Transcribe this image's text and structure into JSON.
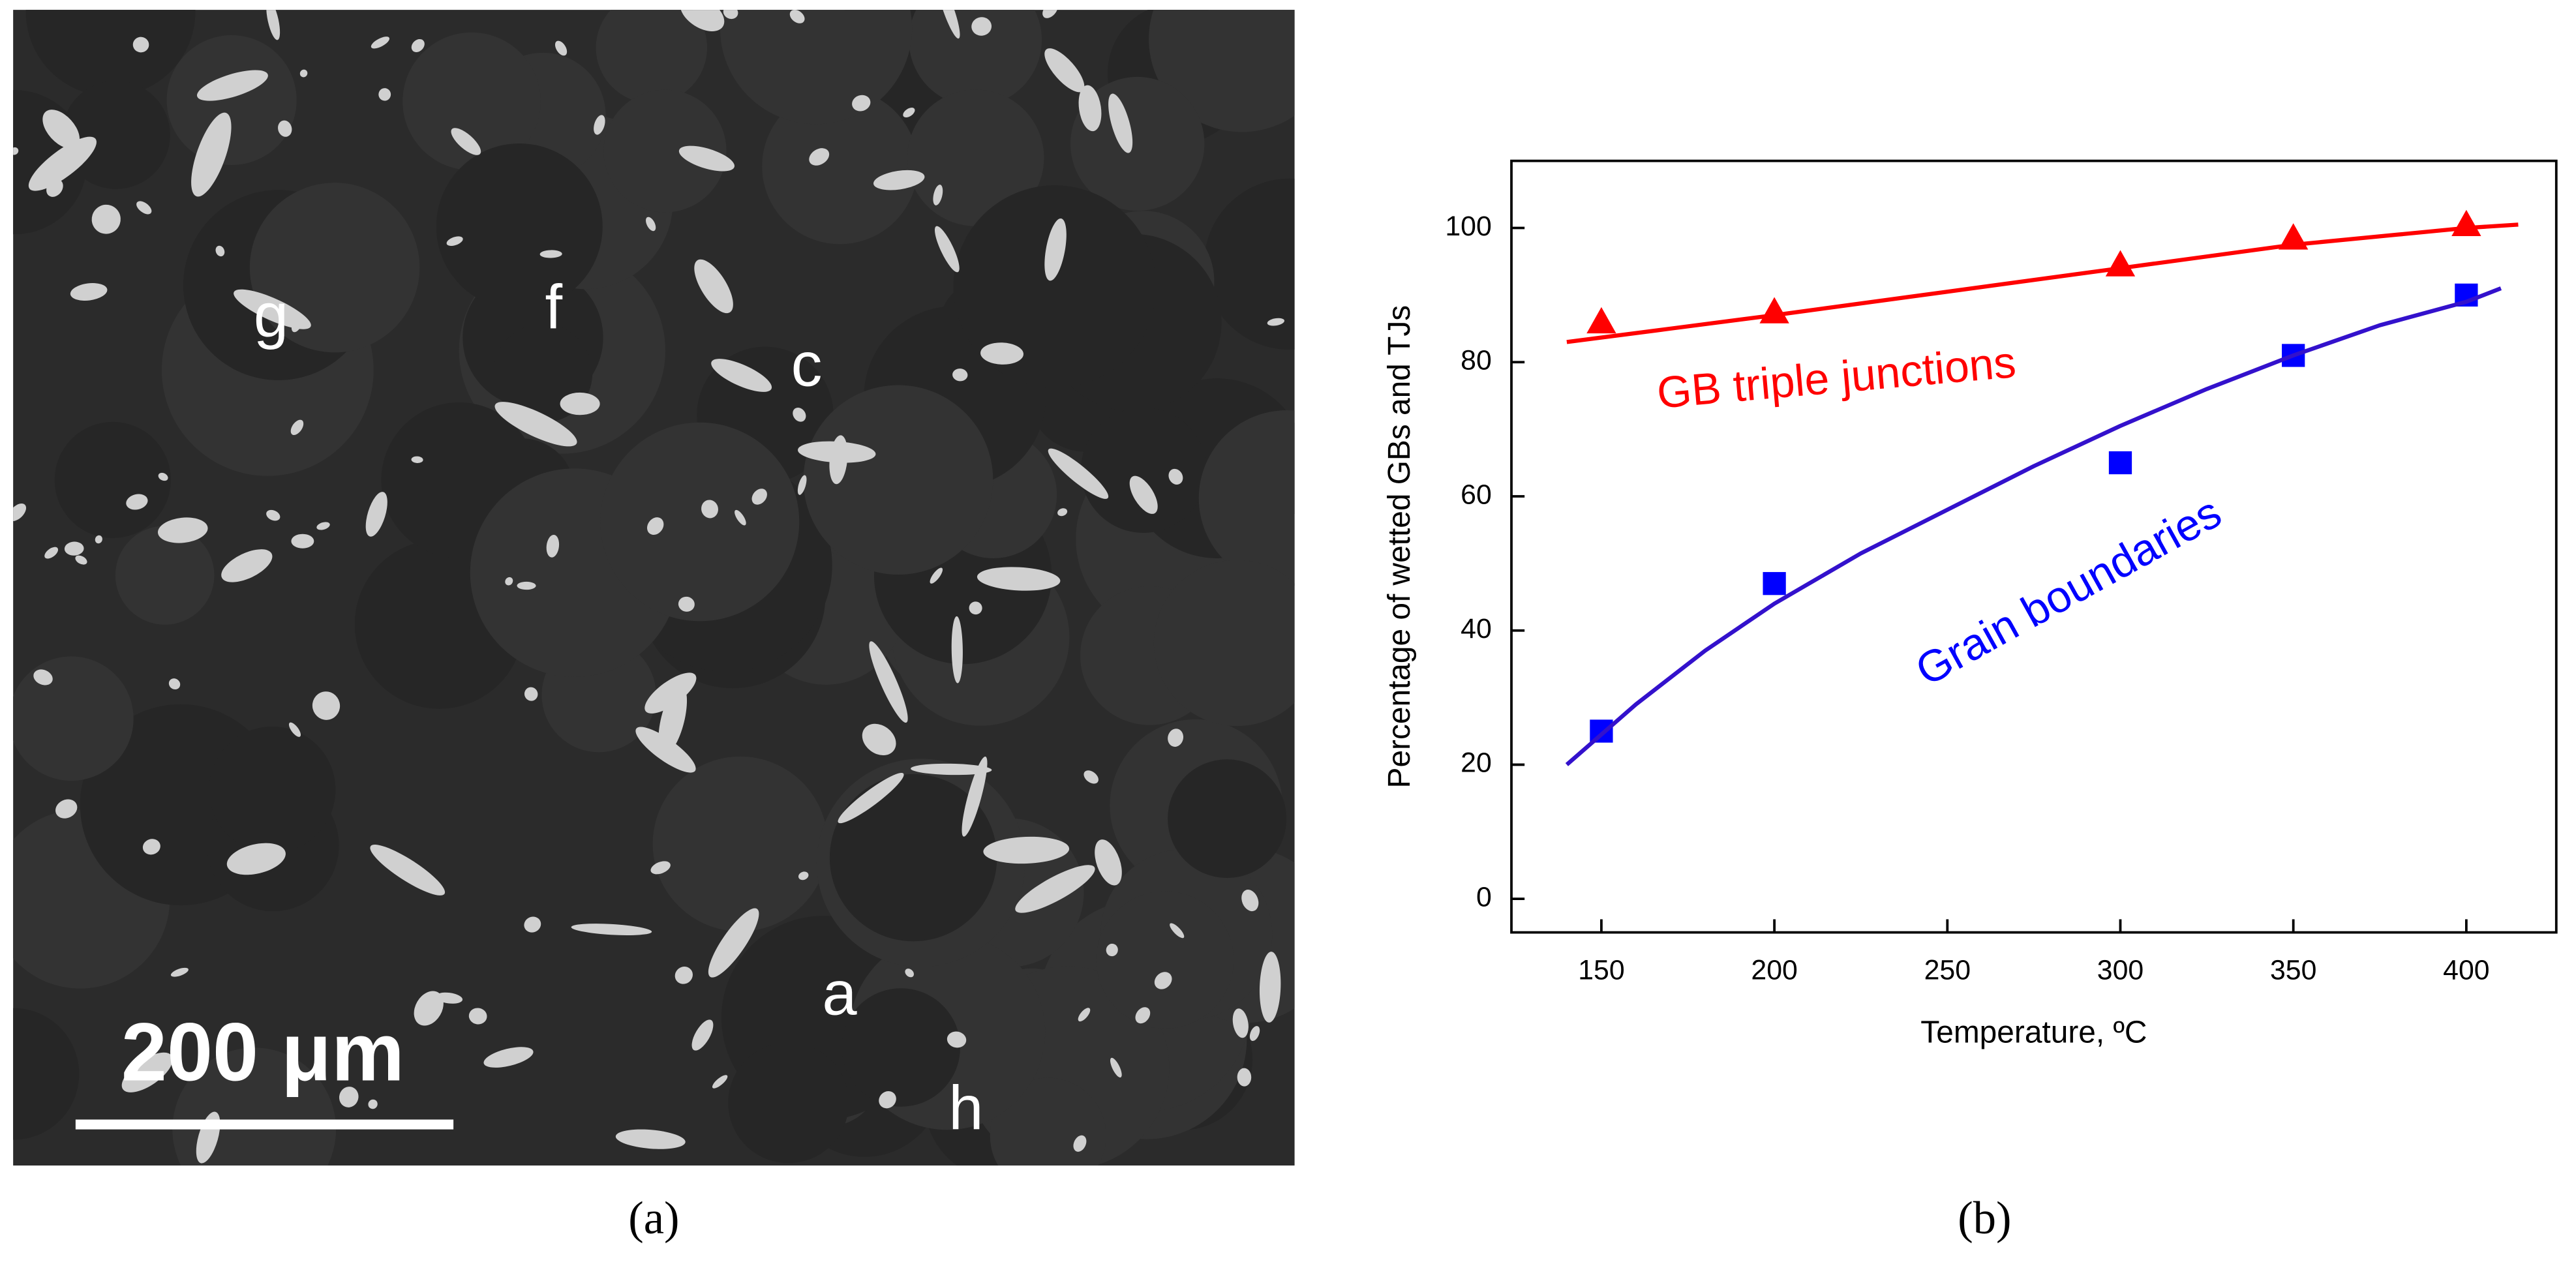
{
  "micrograph": {
    "scale_bar": "200 μm",
    "labels": [
      "g",
      "f",
      "c",
      "a",
      "h"
    ]
  },
  "captions": [
    "(a)",
    "(b)"
  ],
  "chart_data": {
    "type": "scatter",
    "x_label": "Temperature, ºC",
    "y_label": "Percentage of wetted GBs and TJs",
    "xlim": [
      124,
      426
    ],
    "xticks": [
      150,
      200,
      250,
      300,
      350,
      400
    ],
    "ylim": [
      -5,
      110
    ],
    "yticks": [
      0,
      20,
      40,
      60,
      80,
      100
    ],
    "grid": false,
    "series": [
      {
        "color": "#ff0000",
        "marker": "triangle",
        "x": [
          150,
          200,
          300,
          350,
          400
        ],
        "values": [
          86,
          87.5,
          94.5,
          98.5,
          100.5
        ]
      },
      {
        "color": "#0000ff",
        "marker": "square",
        "x": [
          150,
          200,
          300,
          350,
          400
        ],
        "values": [
          25,
          47,
          65,
          81,
          90
        ]
      },
      {
        "color": "#ff0000",
        "style": "line",
        "x": [
          140,
          170,
          200,
          250,
          300,
          350,
          380,
          400,
          415
        ],
        "values": [
          83,
          85,
          87,
          90.5,
          94,
          97.5,
          99,
          100,
          100.5
        ]
      },
      {
        "color": "#3311cc",
        "style": "line",
        "x": [
          140,
          160,
          180,
          200,
          225,
          250,
          275,
          300,
          325,
          350,
          375,
          400,
          410
        ],
        "values": [
          20,
          29,
          37,
          44,
          51.5,
          58,
          64.5,
          70.5,
          76,
          81,
          85.5,
          89,
          91
        ]
      }
    ],
    "annotations": [
      {
        "text": "GB triple junctions",
        "color": "#ff0000"
      },
      {
        "text": "Grain boundaries",
        "color": "#0000ff"
      }
    ]
  }
}
